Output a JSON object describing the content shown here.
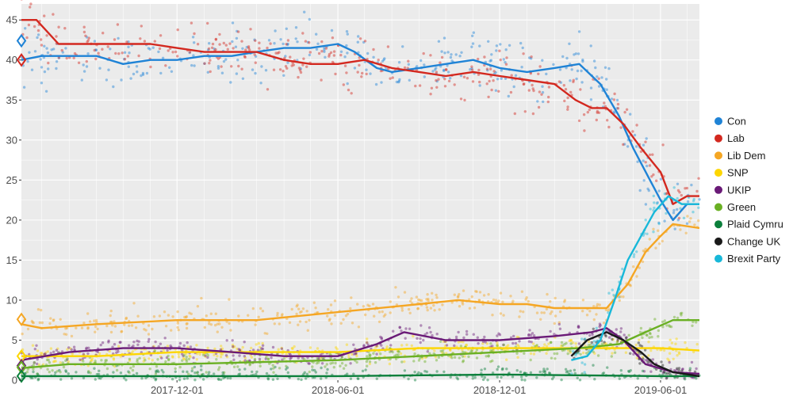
{
  "chart_data": {
    "type": "line",
    "title": "",
    "xlabel": "",
    "ylabel": "",
    "ylim": [
      0,
      47
    ],
    "xlim": [
      "2017-06-08",
      "2019-07-15"
    ],
    "y_ticks": [
      0,
      5,
      10,
      15,
      20,
      25,
      30,
      35,
      40,
      45
    ],
    "x_ticks": [
      "2017-12-01",
      "2018-06-01",
      "2018-12-01",
      "2019-06-01"
    ],
    "grid": true,
    "background": "#ebebeb",
    "legend_position": "right",
    "markers": "raw poll results shown as faint dots around each trend line; diamonds at the left edge mark the 2017 general election result",
    "series": [
      {
        "name": "Con",
        "color": "#1f83d6",
        "election_result": 42.4,
        "points": [
          [
            "2017-06-08",
            40
          ],
          [
            "2017-07-01",
            40.5
          ],
          [
            "2017-08-01",
            40.5
          ],
          [
            "2017-09-01",
            40.5
          ],
          [
            "2017-10-01",
            39.5
          ],
          [
            "2017-11-01",
            40
          ],
          [
            "2017-12-01",
            40
          ],
          [
            "2018-01-01",
            40.5
          ],
          [
            "2018-02-01",
            40.5
          ],
          [
            "2018-03-01",
            41
          ],
          [
            "2018-04-01",
            41.5
          ],
          [
            "2018-05-01",
            41.5
          ],
          [
            "2018-06-01",
            42
          ],
          [
            "2018-06-20",
            41
          ],
          [
            "2018-07-15",
            39
          ],
          [
            "2018-08-01",
            38.5
          ],
          [
            "2018-09-01",
            39
          ],
          [
            "2018-10-01",
            39.5
          ],
          [
            "2018-11-01",
            40
          ],
          [
            "2018-12-01",
            39
          ],
          [
            "2019-01-01",
            38.5
          ],
          [
            "2019-02-01",
            39
          ],
          [
            "2019-03-01",
            39.5
          ],
          [
            "2019-03-25",
            37
          ],
          [
            "2019-04-15",
            33
          ],
          [
            "2019-05-01",
            29
          ],
          [
            "2019-05-20",
            25
          ],
          [
            "2019-06-01",
            22.5
          ],
          [
            "2019-06-15",
            20
          ],
          [
            "2019-07-01",
            22
          ],
          [
            "2019-07-15",
            22
          ]
        ]
      },
      {
        "name": "Lab",
        "color": "#d3281f",
        "election_result": 40.0,
        "points": [
          [
            "2017-06-08",
            45
          ],
          [
            "2017-06-25",
            45
          ],
          [
            "2017-07-20",
            42
          ],
          [
            "2017-09-01",
            42
          ],
          [
            "2017-11-01",
            42
          ],
          [
            "2017-12-01",
            41.5
          ],
          [
            "2018-01-01",
            41
          ],
          [
            "2018-02-01",
            41
          ],
          [
            "2018-03-01",
            41
          ],
          [
            "2018-04-01",
            40
          ],
          [
            "2018-05-01",
            39.5
          ],
          [
            "2018-06-01",
            39.5
          ],
          [
            "2018-07-01",
            40
          ],
          [
            "2018-08-01",
            39
          ],
          [
            "2018-09-01",
            38.5
          ],
          [
            "2018-10-01",
            38
          ],
          [
            "2018-11-01",
            38.5
          ],
          [
            "2018-12-01",
            38
          ],
          [
            "2019-01-01",
            37.5
          ],
          [
            "2019-02-01",
            37
          ],
          [
            "2019-02-25",
            35
          ],
          [
            "2019-03-15",
            34
          ],
          [
            "2019-04-01",
            34
          ],
          [
            "2019-04-20",
            32
          ],
          [
            "2019-05-10",
            29
          ],
          [
            "2019-06-01",
            26
          ],
          [
            "2019-06-15",
            22
          ],
          [
            "2019-07-01",
            23
          ],
          [
            "2019-07-15",
            23
          ]
        ]
      },
      {
        "name": "Lib Dem",
        "color": "#f5a623",
        "election_result": 7.6,
        "points": [
          [
            "2017-06-08",
            7
          ],
          [
            "2017-07-01",
            6.5
          ],
          [
            "2017-09-01",
            7
          ],
          [
            "2017-12-01",
            7.5
          ],
          [
            "2018-03-01",
            7.5
          ],
          [
            "2018-06-01",
            8.5
          ],
          [
            "2018-09-01",
            9.5
          ],
          [
            "2018-10-15",
            10
          ],
          [
            "2018-12-01",
            9.5
          ],
          [
            "2019-01-01",
            9.5
          ],
          [
            "2019-02-01",
            9
          ],
          [
            "2019-03-01",
            9
          ],
          [
            "2019-04-01",
            9
          ],
          [
            "2019-04-25",
            12
          ],
          [
            "2019-05-15",
            16
          ],
          [
            "2019-06-01",
            18
          ],
          [
            "2019-06-15",
            19.5
          ],
          [
            "2019-07-15",
            19
          ]
        ]
      },
      {
        "name": "SNP",
        "color": "#fdd600",
        "election_result": 3.0,
        "points": [
          [
            "2017-06-08",
            3
          ],
          [
            "2017-09-01",
            3
          ],
          [
            "2017-12-01",
            3.5
          ],
          [
            "2018-03-01",
            3.5
          ],
          [
            "2018-06-01",
            3.5
          ],
          [
            "2018-09-01",
            4
          ],
          [
            "2018-12-01",
            4
          ],
          [
            "2019-03-01",
            4
          ],
          [
            "2019-06-01",
            4
          ],
          [
            "2019-07-15",
            3.7
          ]
        ]
      },
      {
        "name": "UKIP",
        "color": "#6a1a77",
        "election_result": 1.8,
        "points": [
          [
            "2017-06-08",
            2.5
          ],
          [
            "2017-08-01",
            3.5
          ],
          [
            "2017-10-01",
            4
          ],
          [
            "2017-12-01",
            4
          ],
          [
            "2018-02-01",
            3.5
          ],
          [
            "2018-04-01",
            3
          ],
          [
            "2018-06-01",
            3
          ],
          [
            "2018-07-15",
            4.5
          ],
          [
            "2018-08-15",
            6
          ],
          [
            "2018-10-01",
            5
          ],
          [
            "2018-12-01",
            5
          ],
          [
            "2019-02-01",
            5.5
          ],
          [
            "2019-03-15",
            6
          ],
          [
            "2019-04-01",
            6.5
          ],
          [
            "2019-04-20",
            5
          ],
          [
            "2019-05-15",
            2
          ],
          [
            "2019-06-15",
            1
          ],
          [
            "2019-07-15",
            0.8
          ]
        ]
      },
      {
        "name": "Green",
        "color": "#6ab023",
        "election_result": 1.6,
        "points": [
          [
            "2017-06-08",
            1.5
          ],
          [
            "2017-08-01",
            2
          ],
          [
            "2017-12-01",
            2
          ],
          [
            "2018-06-01",
            2.5
          ],
          [
            "2018-12-01",
            3.5
          ],
          [
            "2019-03-01",
            4
          ],
          [
            "2019-04-15",
            4.5
          ],
          [
            "2019-05-15",
            6
          ],
          [
            "2019-06-15",
            7.5
          ],
          [
            "2019-07-15",
            7.5
          ]
        ]
      },
      {
        "name": "Plaid Cymru",
        "color": "#0b7f3b",
        "election_result": 0.5,
        "points": [
          [
            "2017-06-08",
            0.5
          ],
          [
            "2017-12-01",
            0.5
          ],
          [
            "2018-06-01",
            0.5
          ],
          [
            "2018-12-01",
            0.7
          ],
          [
            "2019-06-01",
            0.5
          ],
          [
            "2019-07-15",
            0.5
          ]
        ]
      },
      {
        "name": "Change UK",
        "color": "#1a1a1a",
        "election_result": null,
        "points": [
          [
            "2019-02-20",
            3
          ],
          [
            "2019-03-10",
            5
          ],
          [
            "2019-04-01",
            6
          ],
          [
            "2019-04-20",
            5
          ],
          [
            "2019-05-10",
            3.5
          ],
          [
            "2019-05-25",
            2
          ],
          [
            "2019-06-15",
            1
          ],
          [
            "2019-07-15",
            0.5
          ]
        ]
      },
      {
        "name": "Brexit Party",
        "color": "#18b8d9",
        "election_result": null,
        "points": [
          [
            "2019-02-20",
            2.5
          ],
          [
            "2019-03-10",
            3
          ],
          [
            "2019-03-25",
            5
          ],
          [
            "2019-04-10",
            10
          ],
          [
            "2019-04-25",
            15
          ],
          [
            "2019-05-10",
            18
          ],
          [
            "2019-05-25",
            21
          ],
          [
            "2019-06-10",
            23
          ],
          [
            "2019-06-25",
            22
          ],
          [
            "2019-07-15",
            22
          ]
        ]
      }
    ]
  }
}
